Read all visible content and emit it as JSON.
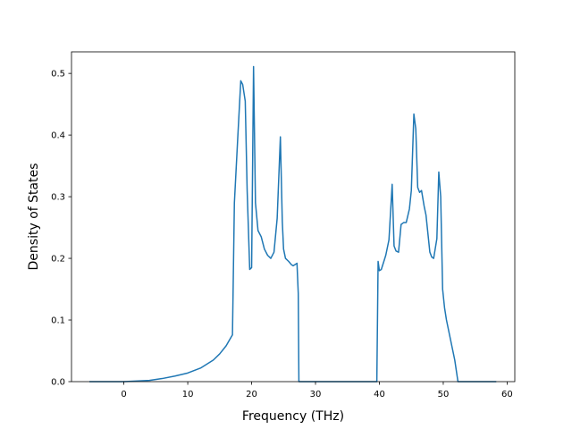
{
  "chart_data": {
    "type": "line",
    "title": "",
    "xlabel": "Frequency (THz)",
    "ylabel": "Density of States",
    "xlim": [
      -8.2,
      61.2
    ],
    "ylim": [
      0,
      0.535
    ],
    "xticks": [
      0,
      10,
      20,
      30,
      40,
      50,
      60
    ],
    "yticks": [
      0.0,
      0.1,
      0.2,
      0.3,
      0.4,
      0.5
    ],
    "xtick_labels": [
      "0",
      "10",
      "20",
      "30",
      "40",
      "50",
      "60"
    ],
    "ytick_labels": [
      "0.0",
      "0.1",
      "0.2",
      "0.3",
      "0.4",
      "0.5"
    ],
    "grid": false,
    "line_color": "#1f77b4",
    "series": [
      {
        "x": [
          -5.3,
          0,
          4,
          6,
          8,
          10,
          12,
          14,
          15,
          16,
          17,
          17.3,
          17.8,
          18.3,
          18.6,
          19.0,
          19.3,
          19.7,
          20.0,
          20.3,
          20.6,
          21.0,
          21.5,
          22.0,
          22.5,
          23.0,
          23.5,
          24.0,
          24.5,
          24.8,
          25.0,
          25.3,
          25.8,
          26.2,
          26.5,
          26.8,
          27.1,
          27.3,
          27.4,
          39.6,
          39.8,
          40.0,
          40.3,
          40.7,
          41.0,
          41.5,
          42.0,
          42.3,
          42.6,
          43.0,
          43.4,
          43.8,
          44.2,
          44.7,
          45.0,
          45.4,
          45.7,
          46.0,
          46.3,
          46.6,
          47.0,
          47.3,
          47.6,
          47.9,
          48.2,
          48.5,
          49.0,
          49.3,
          49.6,
          49.9,
          50.2,
          50.5,
          50.8,
          51.3,
          51.8,
          52.3,
          52.6,
          52.8,
          53.0,
          58.2
        ],
        "y": [
          0.0,
          0.0,
          0.002,
          0.005,
          0.009,
          0.014,
          0.022,
          0.035,
          0.045,
          0.058,
          0.076,
          0.29,
          0.39,
          0.488,
          0.482,
          0.455,
          0.31,
          0.182,
          0.185,
          0.511,
          0.29,
          0.245,
          0.235,
          0.215,
          0.205,
          0.2,
          0.21,
          0.265,
          0.397,
          0.26,
          0.215,
          0.2,
          0.195,
          0.19,
          0.188,
          0.19,
          0.192,
          0.143,
          0.0,
          0.0,
          0.195,
          0.18,
          0.182,
          0.195,
          0.205,
          0.23,
          0.32,
          0.22,
          0.212,
          0.21,
          0.255,
          0.258,
          0.258,
          0.28,
          0.31,
          0.434,
          0.41,
          0.315,
          0.307,
          0.31,
          0.285,
          0.27,
          0.24,
          0.21,
          0.202,
          0.2,
          0.232,
          0.34,
          0.3,
          0.15,
          0.12,
          0.1,
          0.085,
          0.06,
          0.035,
          0.0,
          0.0,
          0.0,
          0.0,
          0.0
        ]
      }
    ]
  }
}
